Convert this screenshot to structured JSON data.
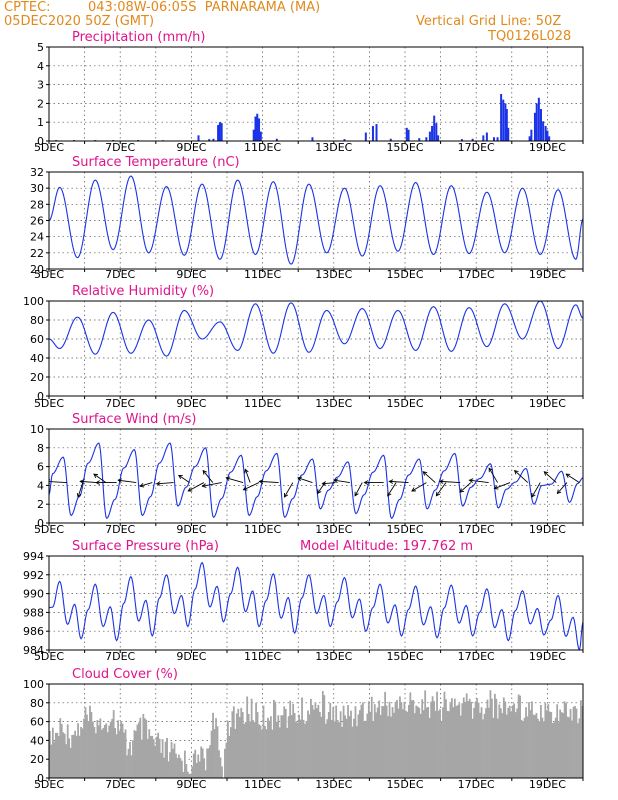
{
  "header": {
    "source": "CPTEC:",
    "location": "043:08W-06:05S  PARNARAMA (MA)",
    "run": "05DEC2020 50Z (GMT)",
    "grid_note": "Vertical Grid Line: 50Z",
    "model_code": "TQ0126L028"
  },
  "colors": {
    "header": "#e08a1e",
    "panel_title": "#e0148c",
    "series": "#1a33e6",
    "cloud": "#a6a6a6",
    "arrow": "#000000"
  },
  "x_axis": {
    "range_days": [
      5,
      20
    ],
    "tick_labels": [
      "5DEC",
      "7DEC",
      "9DEC",
      "11DEC",
      "13DEC",
      "15DEC",
      "17DEC",
      "19DEC"
    ]
  },
  "chart_data": [
    {
      "id": "precip",
      "type": "bar",
      "title": "Precipitation (mm/h)",
      "ylim": [
        0,
        5
      ],
      "yticks": [
        0,
        1,
        2,
        3,
        4,
        5
      ],
      "events": [
        [
          5.2,
          0.05
        ],
        [
          5.7,
          0.05
        ],
        [
          6.3,
          0.05
        ],
        [
          6.8,
          0.05
        ],
        [
          7.5,
          0.05
        ],
        [
          8.2,
          0.04
        ],
        [
          9.2,
          0.3
        ],
        [
          9.5,
          0.1
        ],
        [
          9.62,
          0.12
        ],
        [
          9.75,
          0.85
        ],
        [
          9.8,
          1.0
        ],
        [
          9.85,
          0.95
        ],
        [
          10.75,
          0.6
        ],
        [
          10.8,
          1.3
        ],
        [
          10.85,
          1.45
        ],
        [
          10.9,
          1.2
        ],
        [
          10.95,
          0.5
        ],
        [
          11.4,
          0.12
        ],
        [
          12.4,
          0.2
        ],
        [
          13.3,
          0.1
        ],
        [
          13.9,
          0.45
        ],
        [
          14.1,
          0.8
        ],
        [
          14.2,
          0.9
        ],
        [
          14.6,
          0.12
        ],
        [
          15.05,
          0.7
        ],
        [
          15.1,
          0.6
        ],
        [
          15.4,
          0.15
        ],
        [
          15.6,
          0.2
        ],
        [
          15.7,
          0.5
        ],
        [
          15.76,
          0.8
        ],
        [
          15.82,
          1.35
        ],
        [
          15.88,
          0.95
        ],
        [
          15.93,
          0.3
        ],
        [
          16.6,
          0.1
        ],
        [
          16.9,
          0.12
        ],
        [
          17.2,
          0.3
        ],
        [
          17.3,
          0.45
        ],
        [
          17.5,
          0.2
        ],
        [
          17.6,
          0.2
        ],
        [
          17.7,
          2.5
        ],
        [
          17.76,
          2.2
        ],
        [
          17.82,
          2.0
        ],
        [
          17.86,
          1.7
        ],
        [
          17.9,
          0.7
        ],
        [
          18.5,
          0.25
        ],
        [
          18.55,
          0.6
        ],
        [
          18.65,
          1.5
        ],
        [
          18.7,
          2.0
        ],
        [
          18.76,
          2.3
        ],
        [
          18.82,
          1.7
        ],
        [
          18.88,
          1.05
        ],
        [
          18.95,
          0.8
        ],
        [
          19.0,
          0.55
        ],
        [
          19.05,
          0.25
        ]
      ]
    },
    {
      "id": "temp",
      "type": "line",
      "title": "Surface Temperature (nC)",
      "ylim": [
        20,
        32
      ],
      "yticks": [
        20,
        22,
        24,
        26,
        28,
        30,
        32
      ],
      "daily": [
        {
          "max": 30.1,
          "min": 21.4
        },
        {
          "max": 31.0,
          "min": 22.4
        },
        {
          "max": 31.5,
          "min": 22.0
        },
        {
          "max": 30.2,
          "min": 21.7
        },
        {
          "max": 30.5,
          "min": 21.2
        },
        {
          "max": 31.0,
          "min": 21.8
        },
        {
          "max": 30.8,
          "min": 20.6
        },
        {
          "max": 30.5,
          "min": 22.0
        },
        {
          "max": 30.0,
          "min": 21.6
        },
        {
          "max": 30.3,
          "min": 22.2
        },
        {
          "max": 30.7,
          "min": 21.8
        },
        {
          "max": 30.3,
          "min": 21.9
        },
        {
          "max": 29.5,
          "min": 22.0
        },
        {
          "max": 30.0,
          "min": 21.8
        },
        {
          "max": 29.8,
          "min": 21.2
        }
      ],
      "start": 26.0,
      "end": 26.2
    },
    {
      "id": "rh",
      "type": "line",
      "title": "Relative Humidity (%)",
      "ylim": [
        0,
        100
      ],
      "yticks": [
        0,
        20,
        40,
        60,
        80,
        100
      ],
      "daily": [
        {
          "max": 83,
          "min": 50
        },
        {
          "max": 88,
          "min": 44
        },
        {
          "max": 80,
          "min": 45
        },
        {
          "max": 90,
          "min": 42
        },
        {
          "max": 78,
          "min": 60
        },
        {
          "max": 97,
          "min": 48
        },
        {
          "max": 98,
          "min": 45
        },
        {
          "max": 90,
          "min": 46
        },
        {
          "max": 92,
          "min": 55
        },
        {
          "max": 90,
          "min": 50
        },
        {
          "max": 94,
          "min": 48
        },
        {
          "max": 93,
          "min": 47
        },
        {
          "max": 97,
          "min": 52
        },
        {
          "max": 100,
          "min": 60
        },
        {
          "max": 96,
          "min": 50
        }
      ],
      "start": 60,
      "end": 82
    },
    {
      "id": "wind",
      "type": "line",
      "title": "Surface Wind (m/s)",
      "ylim": [
        0,
        10
      ],
      "yticks": [
        0,
        2,
        4,
        6,
        8,
        10
      ],
      "daily": [
        {
          "max": 7.0,
          "min": 0.8
        },
        {
          "max": 8.5,
          "min": 0.5
        },
        {
          "max": 7.8,
          "min": 0.8
        },
        {
          "max": 8.5,
          "min": 1.8
        },
        {
          "max": 8.0,
          "min": 0.6
        },
        {
          "max": 7.2,
          "min": 0.8
        },
        {
          "max": 7.4,
          "min": 0.6
        },
        {
          "max": 6.8,
          "min": 1.5
        },
        {
          "max": 6.5,
          "min": 1.0
        },
        {
          "max": 7.2,
          "min": 0.5
        },
        {
          "max": 6.8,
          "min": 1.5
        },
        {
          "max": 7.4,
          "min": 1.8
        },
        {
          "max": 6.3,
          "min": 1.6
        },
        {
          "max": 5.8,
          "min": 2.0
        },
        {
          "max": 5.5,
          "min": 2.2
        }
      ],
      "start": 3.0,
      "end": 4.8,
      "vectors": [
        [
          5.5,
          -0.85,
          0.05
        ],
        [
          5.95,
          -0.2,
          -0.6
        ],
        [
          6.35,
          -0.7,
          0.05
        ],
        [
          6.6,
          -0.5,
          0.35
        ],
        [
          6.9,
          -0.85,
          0.0
        ],
        [
          7.45,
          -0.75,
          0.1
        ],
        [
          7.9,
          -0.5,
          -0.15
        ],
        [
          8.5,
          -0.7,
          -0.05
        ],
        [
          8.95,
          -0.45,
          0.3
        ],
        [
          9.35,
          -0.65,
          -0.35
        ],
        [
          9.6,
          -0.4,
          0.5
        ],
        [
          9.85,
          -0.8,
          -0.15
        ],
        [
          10.45,
          -0.7,
          0.2
        ],
        [
          10.65,
          -0.2,
          0.55
        ],
        [
          10.9,
          -0.65,
          -0.3
        ],
        [
          11.45,
          -0.8,
          0.05
        ],
        [
          11.85,
          -0.35,
          -0.6
        ],
        [
          12.4,
          -0.6,
          0.2
        ],
        [
          12.75,
          -0.3,
          -0.45
        ],
        [
          13.05,
          -0.55,
          -0.05
        ],
        [
          13.45,
          -0.65,
          0.1
        ],
        [
          13.8,
          -0.3,
          -0.55
        ],
        [
          14.4,
          -0.8,
          0.0
        ],
        [
          14.75,
          -0.35,
          -0.55
        ],
        [
          15.1,
          -0.8,
          0.05
        ],
        [
          15.6,
          -0.6,
          -0.35
        ],
        [
          15.85,
          -0.5,
          0.45
        ],
        [
          16.15,
          -0.4,
          -0.55
        ],
        [
          16.55,
          -0.85,
          0.05
        ],
        [
          16.85,
          -0.45,
          -0.4
        ],
        [
          17.35,
          -0.8,
          0.1
        ],
        [
          17.6,
          -0.35,
          0.6
        ],
        [
          17.95,
          -0.65,
          -0.25
        ],
        [
          18.45,
          -0.55,
          0.5
        ],
        [
          18.8,
          -0.35,
          -0.6
        ],
        [
          19.25,
          -0.5,
          0.45
        ],
        [
          19.55,
          -0.4,
          -0.45
        ],
        [
          19.9,
          -0.55,
          0.35
        ]
      ]
    },
    {
      "id": "pres",
      "type": "line",
      "title": "Surface Pressure (hPa)",
      "subtitle": "Model Altitude: 197.762 m",
      "ylim": [
        984,
        994
      ],
      "yticks": [
        984,
        986,
        988,
        990,
        992,
        994
      ],
      "daily": [
        {
          "max": 991.3,
          "min": 985.2
        },
        {
          "max": 991.0,
          "min": 985.0
        },
        {
          "max": 991.8,
          "min": 985.5
        },
        {
          "max": 992.0,
          "min": 986.5
        },
        {
          "max": 993.3,
          "min": 987.0
        },
        {
          "max": 992.8,
          "min": 986.5
        },
        {
          "max": 992.1,
          "min": 985.8
        },
        {
          "max": 992.0,
          "min": 986.5
        },
        {
          "max": 991.7,
          "min": 986.0
        },
        {
          "max": 991.0,
          "min": 985.5
        },
        {
          "max": 990.8,
          "min": 985.3
        },
        {
          "max": 990.9,
          "min": 985.5
        },
        {
          "max": 990.5,
          "min": 985.0
        },
        {
          "max": 990.3,
          "min": 985.6
        },
        {
          "max": 989.8,
          "min": 984.0
        }
      ],
      "start": 988.5,
      "end": 987.0
    },
    {
      "id": "cloud",
      "type": "bar",
      "title": "Cloud Cover (%)",
      "ylim": [
        0,
        100
      ],
      "yticks": [
        0,
        20,
        40,
        60,
        80,
        100
      ],
      "profile": [
        [
          5.0,
          50
        ],
        [
          5.3,
          70
        ],
        [
          5.6,
          60
        ],
        [
          6.0,
          80
        ],
        [
          6.4,
          70
        ],
        [
          6.8,
          80
        ],
        [
          7.2,
          50
        ],
        [
          7.6,
          70
        ],
        [
          8.0,
          50
        ],
        [
          8.5,
          40
        ],
        [
          9.0,
          30
        ],
        [
          9.4,
          40
        ],
        [
          9.6,
          80
        ],
        [
          9.85,
          25
        ],
        [
          10.0,
          70
        ],
        [
          10.4,
          85
        ],
        [
          10.7,
          90
        ],
        [
          11.0,
          80
        ],
        [
          11.4,
          85
        ],
        [
          12.0,
          85
        ],
        [
          12.6,
          95
        ],
        [
          13.0,
          80
        ],
        [
          13.5,
          85
        ],
        [
          14.0,
          90
        ],
        [
          14.5,
          95
        ],
        [
          15.0,
          95
        ],
        [
          15.5,
          95
        ],
        [
          16.0,
          92
        ],
        [
          16.5,
          95
        ],
        [
          17.0,
          93
        ],
        [
          17.5,
          95
        ],
        [
          18.0,
          92
        ],
        [
          18.5,
          93
        ],
        [
          19.0,
          90
        ],
        [
          19.5,
          88
        ],
        [
          20.0,
          90
        ]
      ]
    }
  ]
}
